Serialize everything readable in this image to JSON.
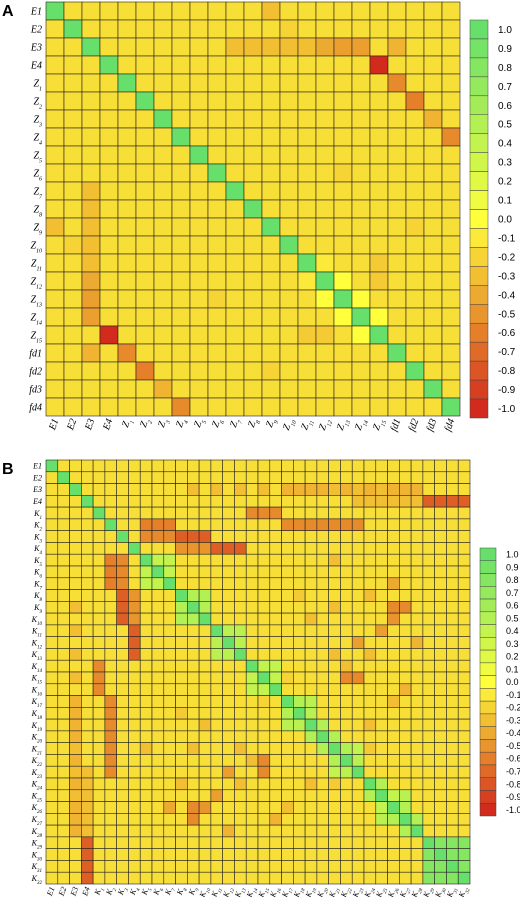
{
  "chart_data": [
    {
      "panel_label": "A",
      "type": "heatmap",
      "labels": [
        "E1",
        "E2",
        "E3",
        "E4",
        "Z_1",
        "Z_2",
        "Z_3",
        "Z_4",
        "Z_5",
        "Z_6",
        "Z_7",
        "Z_8",
        "Z_9",
        "Z_10",
        "Z_11",
        "Z_12",
        "Z_13",
        "Z_14",
        "Z_15",
        "fd1",
        "fd2",
        "fd3",
        "fd4"
      ],
      "colorbar_ticks": [
        "1.0",
        "0.9",
        "0.8",
        "0.7",
        "0.6",
        "0.5",
        "0.4",
        "0.3",
        "0.2",
        "0.1",
        "0.0",
        "-0.1",
        "-0.2",
        "-0.3",
        "-0.4",
        "-0.5",
        "-0.6",
        "-0.7",
        "-0.8",
        "-0.9",
        "-1.0"
      ],
      "color_scale": {
        "min": -1.0,
        "max": 1.0,
        "neg_color": "#d32a1e",
        "mid_color": "#ffff3c",
        "pos_color": "#66e06a"
      },
      "background_value": -0.15,
      "diagonal": 1.0,
      "cells": [
        [
          0,
          12,
          -0.3
        ],
        [
          2,
          14,
          -0.4
        ],
        [
          2,
          15,
          -0.4
        ],
        [
          2,
          16,
          -0.45
        ],
        [
          2,
          17,
          -0.45
        ],
        [
          2,
          19,
          -0.35
        ],
        [
          3,
          18,
          -1.0
        ],
        [
          4,
          19,
          -0.55
        ],
        [
          5,
          20,
          -0.6
        ],
        [
          6,
          21,
          -0.35
        ],
        [
          7,
          22,
          -0.55
        ],
        [
          2,
          10,
          -0.3
        ],
        [
          2,
          11,
          -0.3
        ],
        [
          2,
          12,
          -0.3
        ],
        [
          2,
          13,
          -0.3
        ],
        [
          2,
          14,
          -0.3
        ],
        [
          14,
          15,
          -0.1
        ],
        [
          15,
          16,
          0.0
        ],
        [
          16,
          17,
          0.0
        ],
        [
          17,
          18,
          0.0
        ],
        [
          14,
          18,
          -0.25
        ],
        [
          15,
          18,
          -0.25
        ],
        [
          1,
          13,
          -0.2
        ],
        [
          9,
          16,
          -0.2
        ],
        [
          12,
          20,
          -0.2
        ]
      ]
    },
    {
      "panel_label": "B",
      "type": "heatmap",
      "labels": [
        "E1",
        "E2",
        "E3",
        "E4",
        "K_1",
        "K_2",
        "K_3",
        "K_4",
        "K_5",
        "K_6",
        "K_7",
        "K_8",
        "K_9",
        "K_10",
        "K_11",
        "K_12",
        "K_13",
        "K_14",
        "K_15",
        "K_16",
        "K_17",
        "K_18",
        "K_19",
        "K_20",
        "K_21",
        "K_22",
        "K_23",
        "K_24",
        "K_25",
        "K_26",
        "K_27",
        "K_28",
        "K_29",
        "K_30",
        "K_31",
        "K_32"
      ],
      "colorbar_ticks": [
        "1.0",
        "0.9",
        "0.8",
        "0.7",
        "0.6",
        "0.5",
        "0.4",
        "0.3",
        "0.2",
        "0.1",
        "0.0",
        "-0.1",
        "-0.2",
        "-0.3",
        "-0.4",
        "-0.5",
        "-0.6",
        "-0.7",
        "-0.8",
        "-0.9",
        "-1.0"
      ],
      "color_scale": {
        "min": -1.0,
        "max": 1.0,
        "neg_color": "#d32a1e",
        "mid_color": "#ffff3c",
        "pos_color": "#66e06a"
      },
      "background_value": -0.15,
      "diagonal": 1.0,
      "cells": [
        [
          2,
          20,
          -0.35
        ],
        [
          2,
          21,
          -0.35
        ],
        [
          2,
          22,
          -0.35
        ],
        [
          2,
          23,
          -0.35
        ],
        [
          2,
          24,
          -0.35
        ],
        [
          2,
          25,
          -0.35
        ],
        [
          2,
          26,
          -0.35
        ],
        [
          2,
          27,
          -0.35
        ],
        [
          2,
          28,
          -0.35
        ],
        [
          2,
          29,
          -0.35
        ],
        [
          2,
          30,
          -0.35
        ],
        [
          2,
          31,
          -0.35
        ],
        [
          3,
          32,
          -0.75
        ],
        [
          3,
          33,
          -0.75
        ],
        [
          3,
          34,
          -0.75
        ],
        [
          3,
          35,
          -0.75
        ],
        [
          4,
          17,
          -0.55
        ],
        [
          4,
          18,
          -0.55
        ],
        [
          4,
          19,
          -0.55
        ],
        [
          5,
          8,
          -0.6
        ],
        [
          5,
          9,
          -0.6
        ],
        [
          5,
          10,
          -0.6
        ],
        [
          6,
          11,
          -0.75
        ],
        [
          6,
          12,
          -0.75
        ],
        [
          6,
          13,
          -0.75
        ],
        [
          7,
          14,
          -0.75
        ],
        [
          7,
          15,
          -0.75
        ],
        [
          7,
          16,
          -0.75
        ],
        [
          8,
          9,
          0.4
        ],
        [
          8,
          10,
          0.4
        ],
        [
          9,
          10,
          0.4
        ],
        [
          11,
          12,
          0.5
        ],
        [
          11,
          13,
          0.5
        ],
        [
          12,
          13,
          0.5
        ],
        [
          14,
          15,
          0.45
        ],
        [
          14,
          16,
          0.45
        ],
        [
          15,
          16,
          0.45
        ],
        [
          17,
          18,
          0.4
        ],
        [
          17,
          19,
          0.4
        ],
        [
          18,
          19,
          0.4
        ],
        [
          20,
          21,
          0.5
        ],
        [
          20,
          22,
          0.45
        ],
        [
          21,
          22,
          0.45
        ],
        [
          22,
          23,
          0.5
        ],
        [
          23,
          24,
          0.5
        ],
        [
          24,
          25,
          0.5
        ],
        [
          24,
          26,
          0.4
        ],
        [
          25,
          26,
          0.45
        ],
        [
          27,
          28,
          0.5
        ],
        [
          28,
          29,
          0.4
        ],
        [
          28,
          30,
          0.45
        ],
        [
          29,
          30,
          0.5
        ],
        [
          30,
          31,
          0.5
        ],
        [
          32,
          33,
          0.8
        ],
        [
          32,
          34,
          0.8
        ],
        [
          32,
          35,
          0.8
        ],
        [
          33,
          34,
          0.8
        ],
        [
          33,
          35,
          0.8
        ],
        [
          34,
          35,
          0.8
        ],
        [
          5,
          20,
          -0.55
        ],
        [
          5,
          21,
          -0.55
        ],
        [
          5,
          22,
          -0.55
        ],
        [
          5,
          23,
          -0.55
        ],
        [
          5,
          24,
          -0.55
        ],
        [
          5,
          25,
          -0.55
        ],
        [
          5,
          26,
          -0.55
        ],
        [
          6,
          8,
          -0.55
        ],
        [
          6,
          9,
          -0.55
        ],
        [
          6,
          10,
          -0.55
        ],
        [
          7,
          11,
          -0.5
        ],
        [
          7,
          12,
          -0.5
        ],
        [
          7,
          13,
          -0.5
        ],
        [
          2,
          12,
          -0.3
        ],
        [
          2,
          14,
          -0.3
        ],
        [
          2,
          16,
          -0.3
        ],
        [
          2,
          18,
          -0.3
        ],
        [
          2,
          24,
          -0.3
        ],
        [
          2,
          26,
          -0.3
        ],
        [
          2,
          28,
          -0.3
        ],
        [
          3,
          26,
          -0.3
        ],
        [
          3,
          27,
          -0.3
        ],
        [
          3,
          28,
          -0.3
        ],
        [
          3,
          29,
          -0.3
        ],
        [
          3,
          30,
          -0.3
        ],
        [
          3,
          31,
          -0.3
        ],
        [
          8,
          24,
          -0.3
        ],
        [
          12,
          24,
          -0.3
        ],
        [
          16,
          24,
          -0.3
        ],
        [
          10,
          29,
          -0.4
        ],
        [
          18,
          25,
          -0.55
        ],
        [
          18,
          26,
          -0.55
        ],
        [
          12,
          29,
          -0.55
        ],
        [
          12,
          30,
          -0.55
        ],
        [
          13,
          29,
          -0.5
        ],
        [
          14,
          28,
          -0.45
        ],
        [
          15,
          26,
          -0.45
        ],
        [
          16,
          27,
          -0.3
        ],
        [
          15,
          31,
          -0.35
        ],
        [
          19,
          30,
          -0.35
        ],
        [
          11,
          21,
          -0.25
        ],
        [
          11,
          27,
          -0.3
        ],
        [
          13,
          22,
          -0.3
        ],
        [
          17,
          25,
          -0.3
        ],
        [
          20,
          29,
          -0.3
        ],
        [
          22,
          27,
          -0.3
        ],
        [
          24,
          27,
          -0.25
        ],
        [
          18,
          20,
          -0.2
        ]
      ]
    }
  ]
}
